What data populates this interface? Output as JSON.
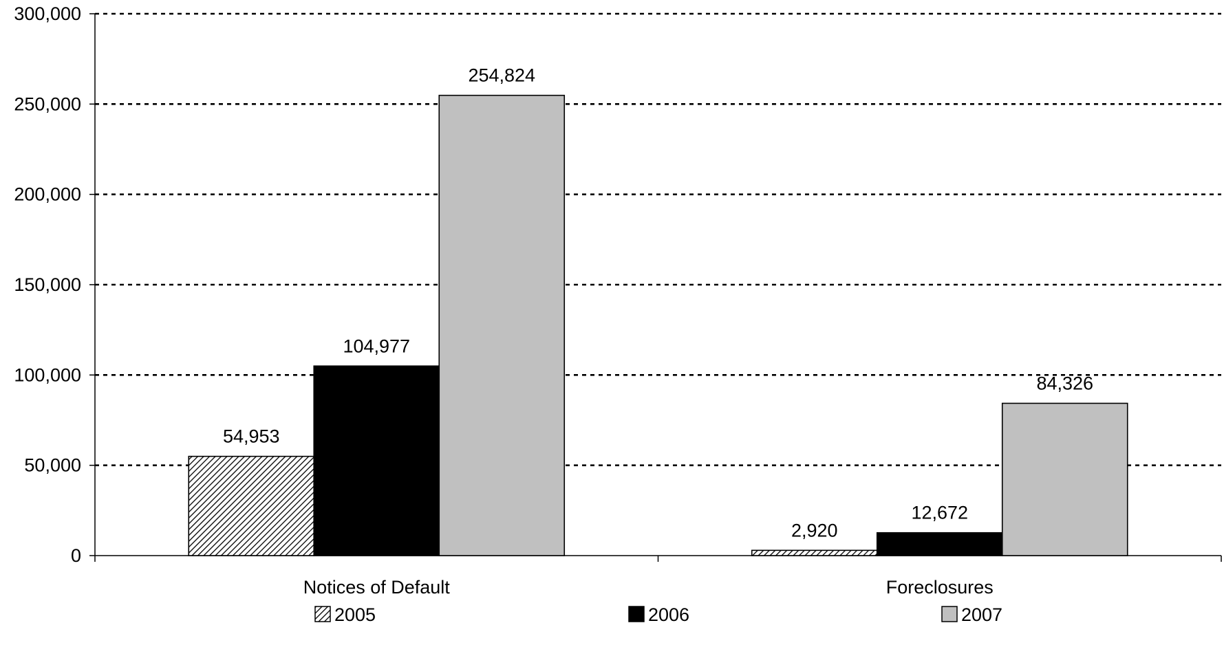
{
  "chart_data": {
    "type": "bar",
    "categories": [
      "Notices of Default",
      "Foreclosures"
    ],
    "series": [
      {
        "name": "2005",
        "values": [
          54953,
          2920
        ],
        "value_labels": [
          "54,953",
          "2,920"
        ],
        "fill": "hatch"
      },
      {
        "name": "2006",
        "values": [
          104977,
          12672
        ],
        "value_labels": [
          "104,977",
          "12,672"
        ],
        "fill": "#000000"
      },
      {
        "name": "2007",
        "values": [
          254824,
          84326
        ],
        "value_labels": [
          "254,824",
          "84,326"
        ],
        "fill": "#c0c0c0"
      }
    ],
    "ylim": [
      0,
      300000
    ],
    "yticks": [
      0,
      50000,
      100000,
      150000,
      200000,
      250000,
      300000
    ],
    "ytick_labels": [
      "0",
      "50,000",
      "100,000",
      "150,000",
      "200,000",
      "250,000",
      "300,000"
    ],
    "grid": "dotted horizontal",
    "legend": "bottom",
    "title": "",
    "xlabel": "",
    "ylabel": ""
  }
}
